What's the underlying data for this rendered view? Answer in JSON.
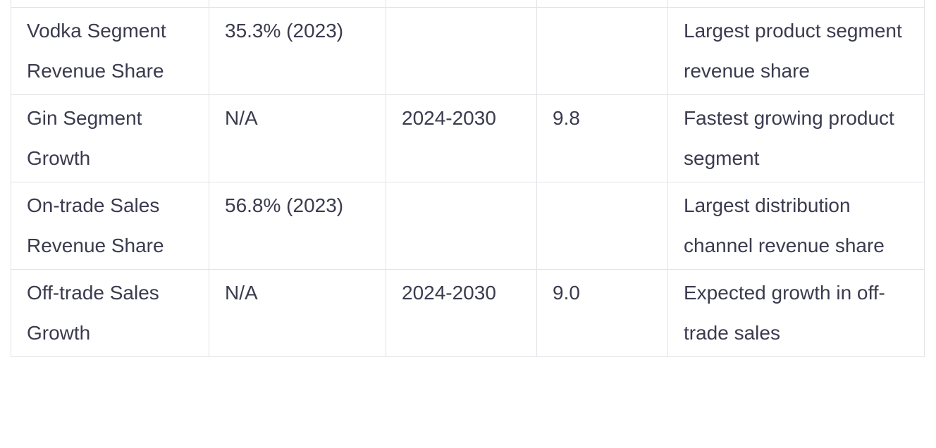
{
  "table": {
    "rows": [
      [
        "Vodka Segment Revenue Share",
        "35.3% (2023)",
        null,
        null,
        "Largest product segment revenue share"
      ],
      [
        "Gin Segment Growth",
        "N/A",
        "2024-2030",
        "9.8",
        "Fastest growing product segment"
      ],
      [
        "On-trade Sales Revenue Share",
        "56.8% (2023)",
        null,
        null,
        "Largest distribution channel revenue share"
      ],
      [
        "Off-trade Sales Growth",
        "N/A",
        "2024-2030",
        "9.0",
        "Expected growth in off-trade sales"
      ]
    ]
  }
}
